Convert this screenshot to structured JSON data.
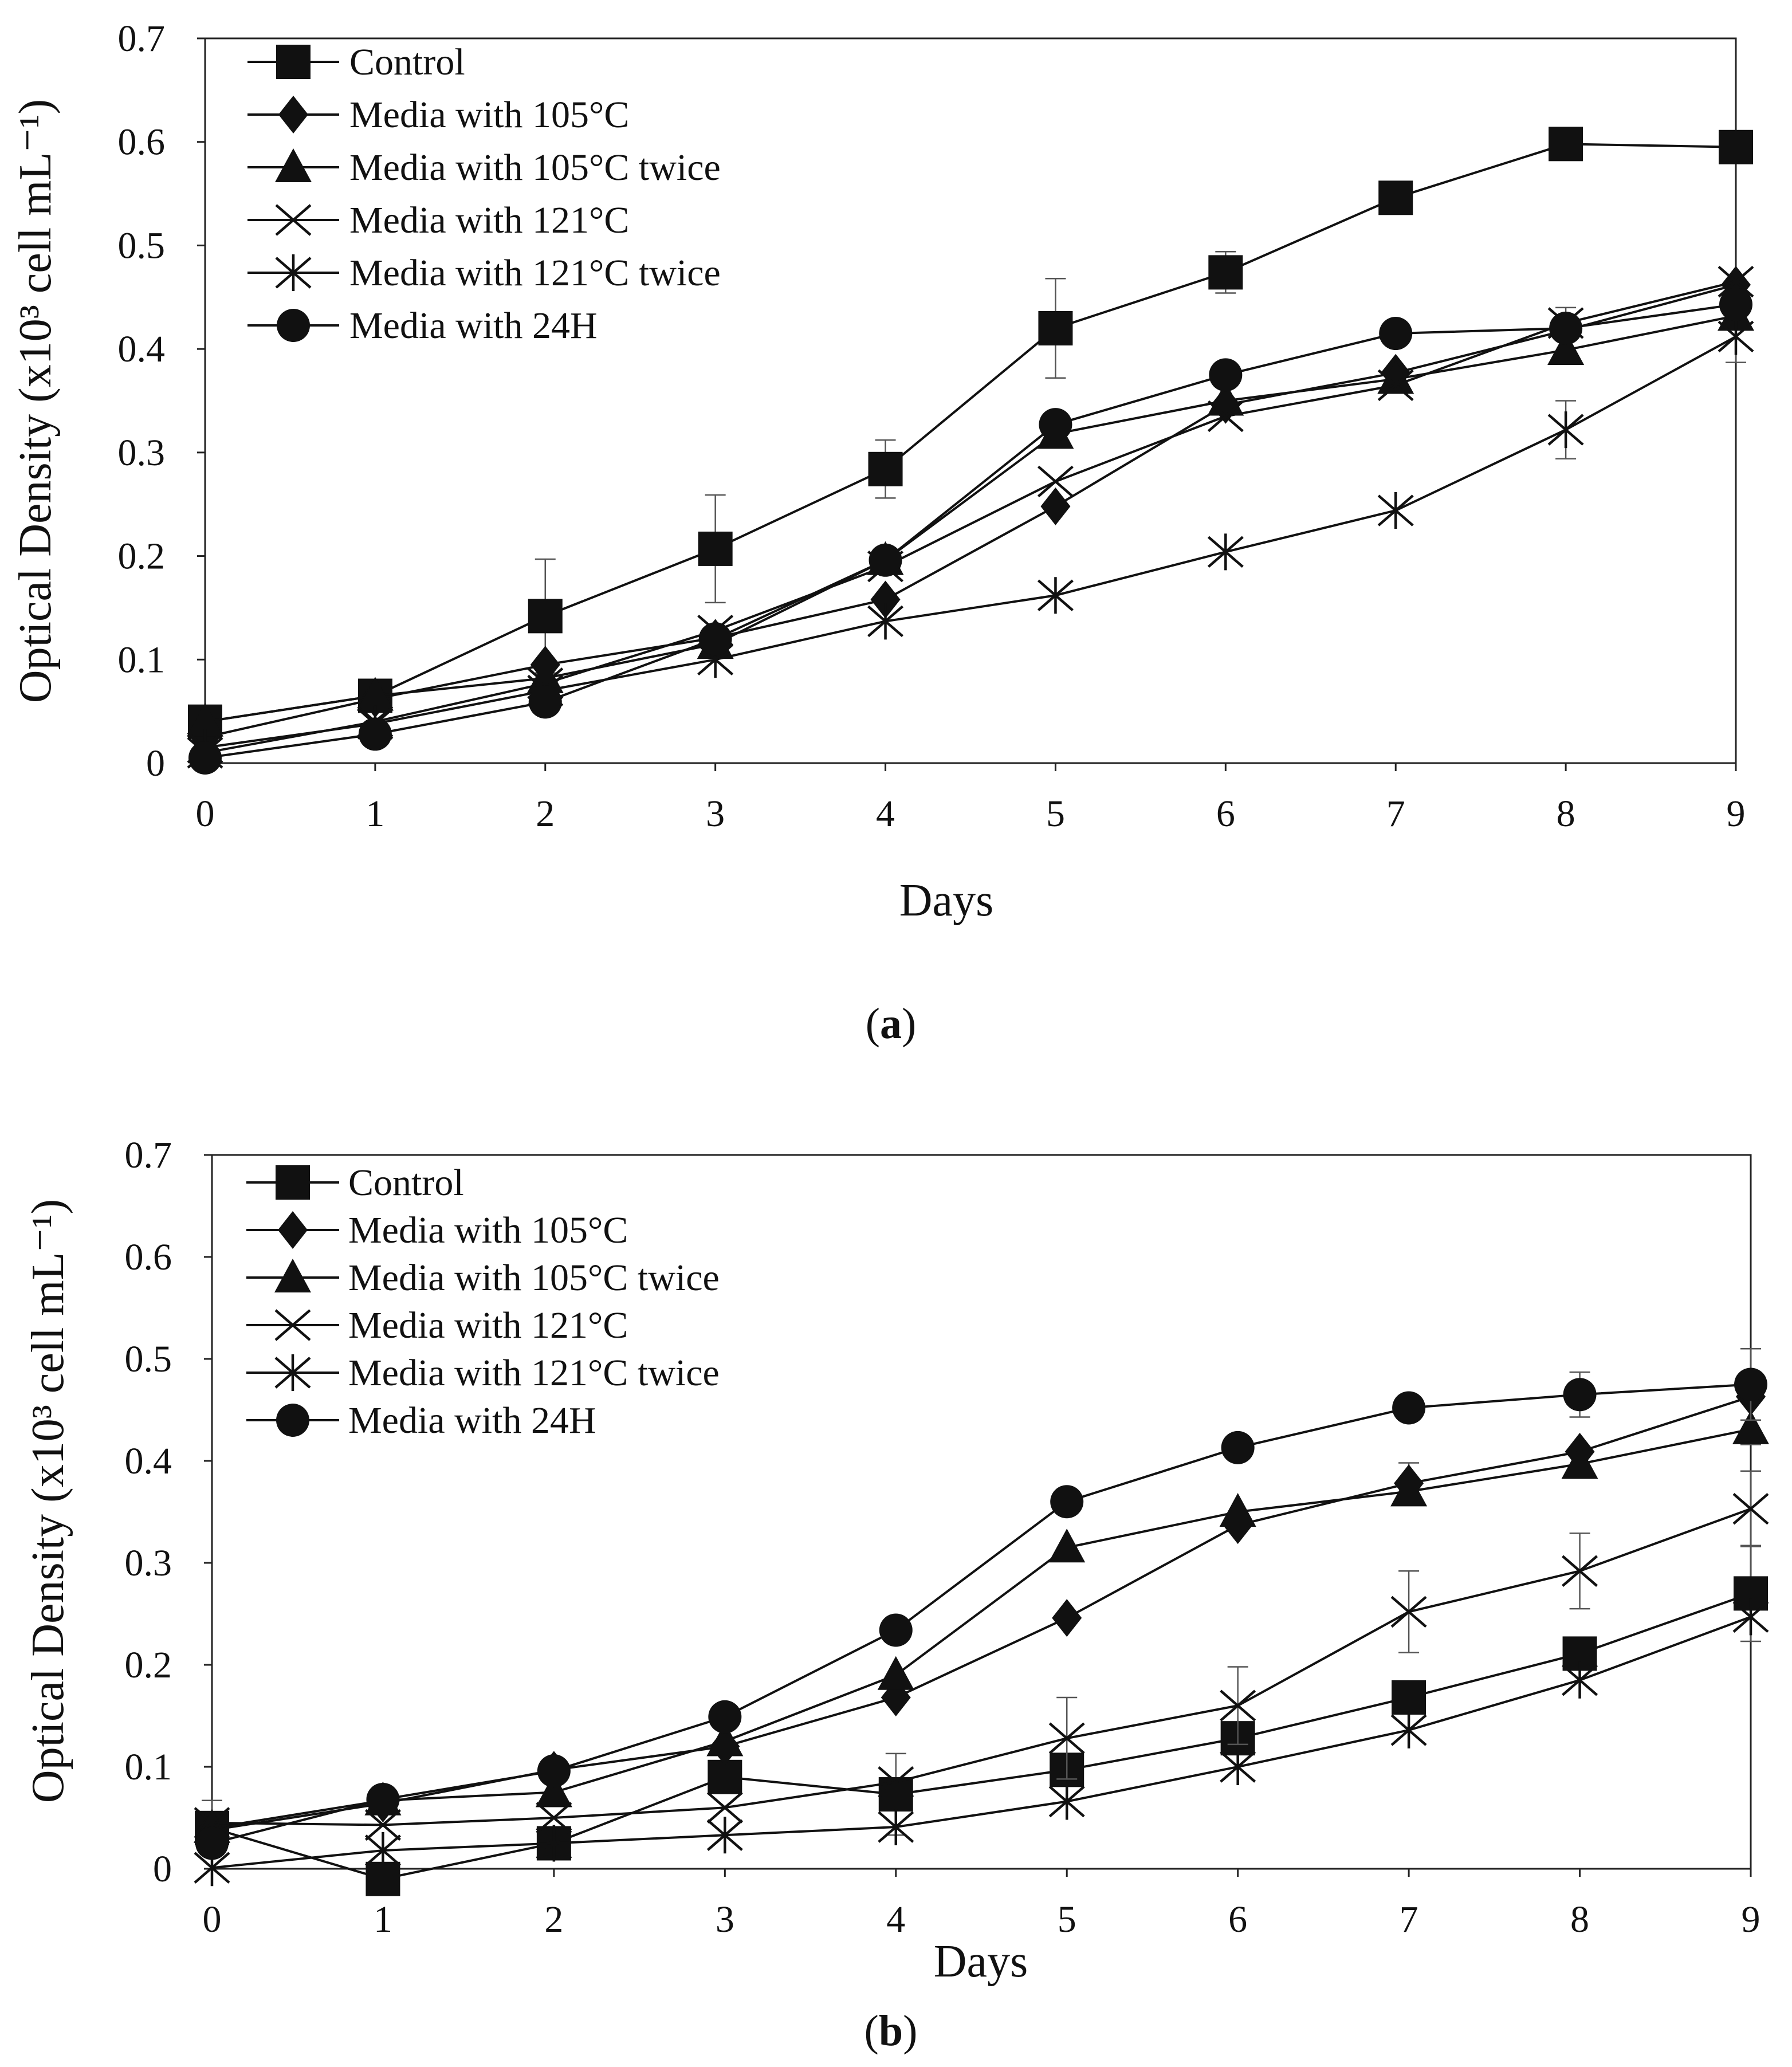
{
  "figure": {
    "panels": [
      {
        "label_open": "(",
        "label_letter": "a",
        "label_close": ")"
      },
      {
        "label_open": "(",
        "label_letter": "b",
        "label_close": ")"
      }
    ]
  },
  "chart_data": [
    {
      "type": "line",
      "panel": "a",
      "xlabel": "Days",
      "ylabel": "Optical Density (x10³ cell mL⁻¹)",
      "x": [
        0,
        1,
        2,
        3,
        4,
        5,
        6,
        7,
        8,
        9
      ],
      "xlim": [
        0,
        9
      ],
      "ylim": [
        0,
        0.7
      ],
      "xticks": [
        "0",
        "1",
        "2",
        "3",
        "4",
        "5",
        "6",
        "7",
        "8",
        "9"
      ],
      "yticks": [
        "0",
        "0.1",
        "0.2",
        "0.3",
        "0.4",
        "0.5",
        "0.6",
        "0.7"
      ],
      "legend_position": "top-left",
      "series": [
        {
          "name": "Control",
          "marker": "square",
          "values": [
            0.04,
            0.065,
            0.142,
            0.207,
            0.284,
            0.42,
            0.474,
            0.546,
            0.598,
            0.595
          ],
          "errors": [
            0.005,
            0.004,
            0.055,
            0.052,
            0.028,
            0.048,
            0.02,
            0.006,
            0.004,
            0.005
          ]
        },
        {
          "name": "Media with 105°C",
          "marker": "diamond",
          "values": [
            0.025,
            0.062,
            0.095,
            0.121,
            0.158,
            0.248,
            0.346,
            0.377,
            0.418,
            0.462
          ],
          "errors": [
            0.0,
            0.0,
            0.0,
            0.0,
            0.0,
            0.0,
            0.0,
            0.0,
            0.0,
            0.0
          ]
        },
        {
          "name": "Media with 105°C twice",
          "marker": "triangle",
          "values": [
            0.04,
            0.065,
            0.082,
            0.115,
            0.196,
            0.318,
            0.35,
            0.371,
            0.399,
            0.432
          ],
          "errors": [
            0.0,
            0.0,
            0.0,
            0.0,
            0.0,
            0.0,
            0.0,
            0.0,
            0.0,
            0.0
          ]
        },
        {
          "name": "Media with 121°C",
          "marker": "x",
          "values": [
            0.01,
            0.04,
            0.077,
            0.128,
            0.19,
            0.272,
            0.335,
            0.365,
            0.425,
            0.465
          ],
          "errors": [
            0.0,
            0.0,
            0.0,
            0.0,
            0.0,
            0.0,
            0.0,
            0.0,
            0.015,
            0.0
          ]
        },
        {
          "name": "Media with 121°C twice",
          "marker": "asterisk",
          "values": [
            0.015,
            0.038,
            0.07,
            0.1,
            0.137,
            0.162,
            0.204,
            0.244,
            0.322,
            0.412
          ],
          "errors": [
            0.0,
            0.0,
            0.0,
            0.0,
            0.0,
            0.0,
            0.0,
            0.0,
            0.028,
            0.025
          ]
        },
        {
          "name": "Media with 24H",
          "marker": "circle",
          "values": [
            0.005,
            0.028,
            0.059,
            0.12,
            0.196,
            0.327,
            0.375,
            0.415,
            0.42,
            0.443
          ],
          "errors": [
            0.0,
            0.0,
            0.0,
            0.0,
            0.0,
            0.0,
            0.0,
            0.0,
            0.0,
            0.0
          ]
        }
      ]
    },
    {
      "type": "line",
      "panel": "b",
      "xlabel": "Days",
      "ylabel": "Optical Density (x10³ cell mL⁻¹)",
      "x": [
        0,
        1,
        2,
        3,
        4,
        5,
        6,
        7,
        8,
        9
      ],
      "xlim": [
        0,
        9
      ],
      "ylim": [
        0,
        0.7
      ],
      "xticks": [
        "0",
        "1",
        "2",
        "3",
        "4",
        "5",
        "6",
        "7",
        "8",
        "9"
      ],
      "yticks": [
        "0",
        "0.1",
        "0.2",
        "0.3",
        "0.4",
        "0.5",
        "0.6",
        "0.7"
      ],
      "legend_position": "top-left",
      "series": [
        {
          "name": "Control",
          "marker": "square",
          "values": [
            0.04,
            -0.01,
            0.025,
            0.09,
            0.073,
            0.097,
            0.128,
            0.168,
            0.211,
            0.27
          ],
          "errors": [
            0.027,
            0.0,
            0.0,
            0.0,
            0.04,
            0.0,
            0.0,
            0.0,
            0.0,
            0.047
          ]
        },
        {
          "name": "Media with 105°C",
          "marker": "diamond",
          "values": [
            0.038,
            0.064,
            0.097,
            0.12,
            0.168,
            0.246,
            0.337,
            0.378,
            0.409,
            0.463
          ],
          "errors": [
            0.0,
            0.0,
            0.0,
            0.0,
            0.0,
            0.0,
            0.0,
            0.02,
            0.0,
            0.047
          ]
        },
        {
          "name": "Media with 105°C twice",
          "marker": "triangle",
          "values": [
            0.04,
            0.067,
            0.075,
            0.125,
            0.19,
            0.315,
            0.35,
            0.37,
            0.397,
            0.431
          ],
          "errors": [
            0.0,
            0.0,
            0.0,
            0.0,
            0.0,
            0.0,
            0.0,
            0.0,
            0.0,
            0.0
          ]
        },
        {
          "name": "Media with 121°C",
          "marker": "x",
          "values": [
            0.045,
            0.043,
            0.05,
            0.06,
            0.085,
            0.128,
            0.16,
            0.252,
            0.292,
            0.353
          ],
          "errors": [
            0.0,
            0.0,
            0.0,
            0.0,
            0.0,
            0.04,
            0.038,
            0.04,
            0.037,
            0.037
          ]
        },
        {
          "name": "Media with 121°C twice",
          "marker": "asterisk",
          "values": [
            0.001,
            0.018,
            0.025,
            0.033,
            0.041,
            0.066,
            0.1,
            0.136,
            0.185,
            0.247
          ],
          "errors": [
            0.0,
            0.0,
            0.0,
            0.0,
            0.0,
            0.0,
            0.0,
            0.0,
            0.0,
            0.0
          ]
        },
        {
          "name": "Media with 24H",
          "marker": "circle",
          "values": [
            0.025,
            0.068,
            0.096,
            0.149,
            0.234,
            0.36,
            0.413,
            0.452,
            0.465,
            0.475
          ],
          "errors": [
            0.0,
            0.0,
            0.0,
            0.0,
            0.0,
            0.0,
            0.0,
            0.0,
            0.022,
            0.035
          ]
        }
      ]
    }
  ]
}
